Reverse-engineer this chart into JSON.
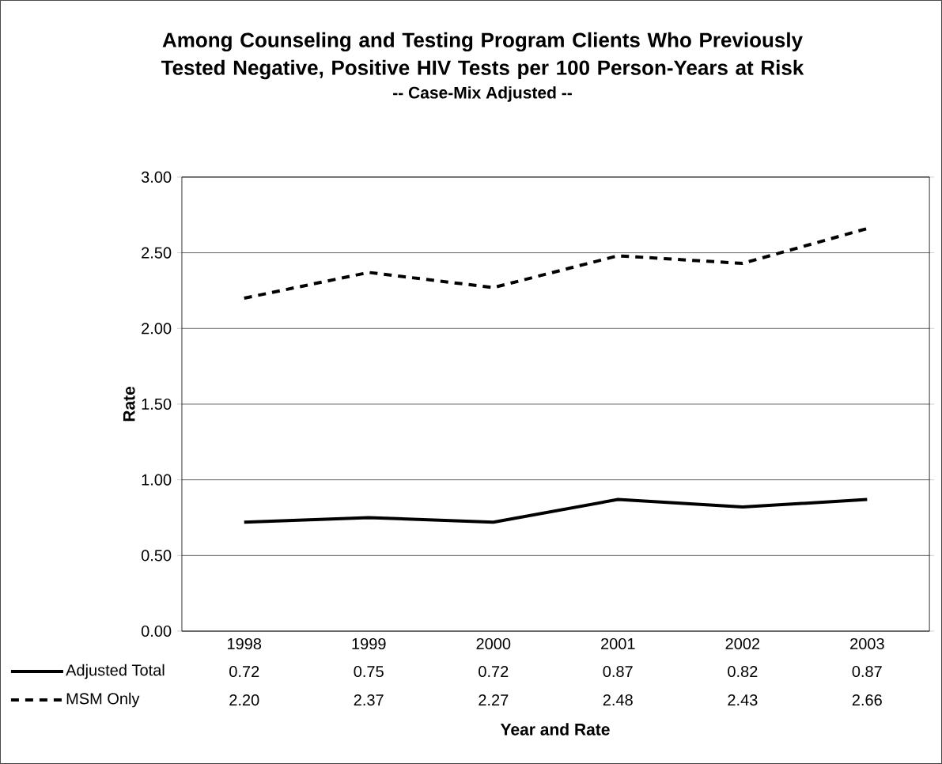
{
  "chart_data": {
    "type": "line",
    "title": "Among Counseling and Testing Program Clients Who Previously Tested Negative, Positive HIV Tests per 100 Person-Years at Risk",
    "subtitle": "-- Case-Mix Adjusted --",
    "xlabel": "Year and Rate",
    "ylabel": "Rate",
    "categories": [
      "1998",
      "1999",
      "2000",
      "2001",
      "2002",
      "2003"
    ],
    "series": [
      {
        "name": "Adjusted Total",
        "color": "#000000",
        "line_style": "solid",
        "values": [
          0.72,
          0.75,
          0.72,
          0.87,
          0.82,
          0.87
        ],
        "value_labels": [
          "0.72",
          "0.75",
          "0.72",
          "0.87",
          "0.82",
          "0.87"
        ]
      },
      {
        "name": "MSM Only",
        "color": "#000000",
        "line_style": "dashed",
        "values": [
          2.2,
          2.37,
          2.27,
          2.48,
          2.43,
          2.66
        ],
        "value_labels": [
          "2.20",
          "2.37",
          "2.27",
          "2.48",
          "2.43",
          "2.66"
        ]
      }
    ],
    "ylim": [
      0,
      3
    ],
    "yticks": [
      {
        "value": 0,
        "label": "0.00"
      },
      {
        "value": 0.5,
        "label": "0.50"
      },
      {
        "value": 1,
        "label": "1.00"
      },
      {
        "value": 1.5,
        "label": "1.50"
      },
      {
        "value": 2,
        "label": "2.00"
      },
      {
        "value": 2.5,
        "label": "2.50"
      },
      {
        "value": 3,
        "label": "3.00"
      }
    ],
    "grid": "y",
    "legend": "bottom left",
    "marker": "none"
  }
}
